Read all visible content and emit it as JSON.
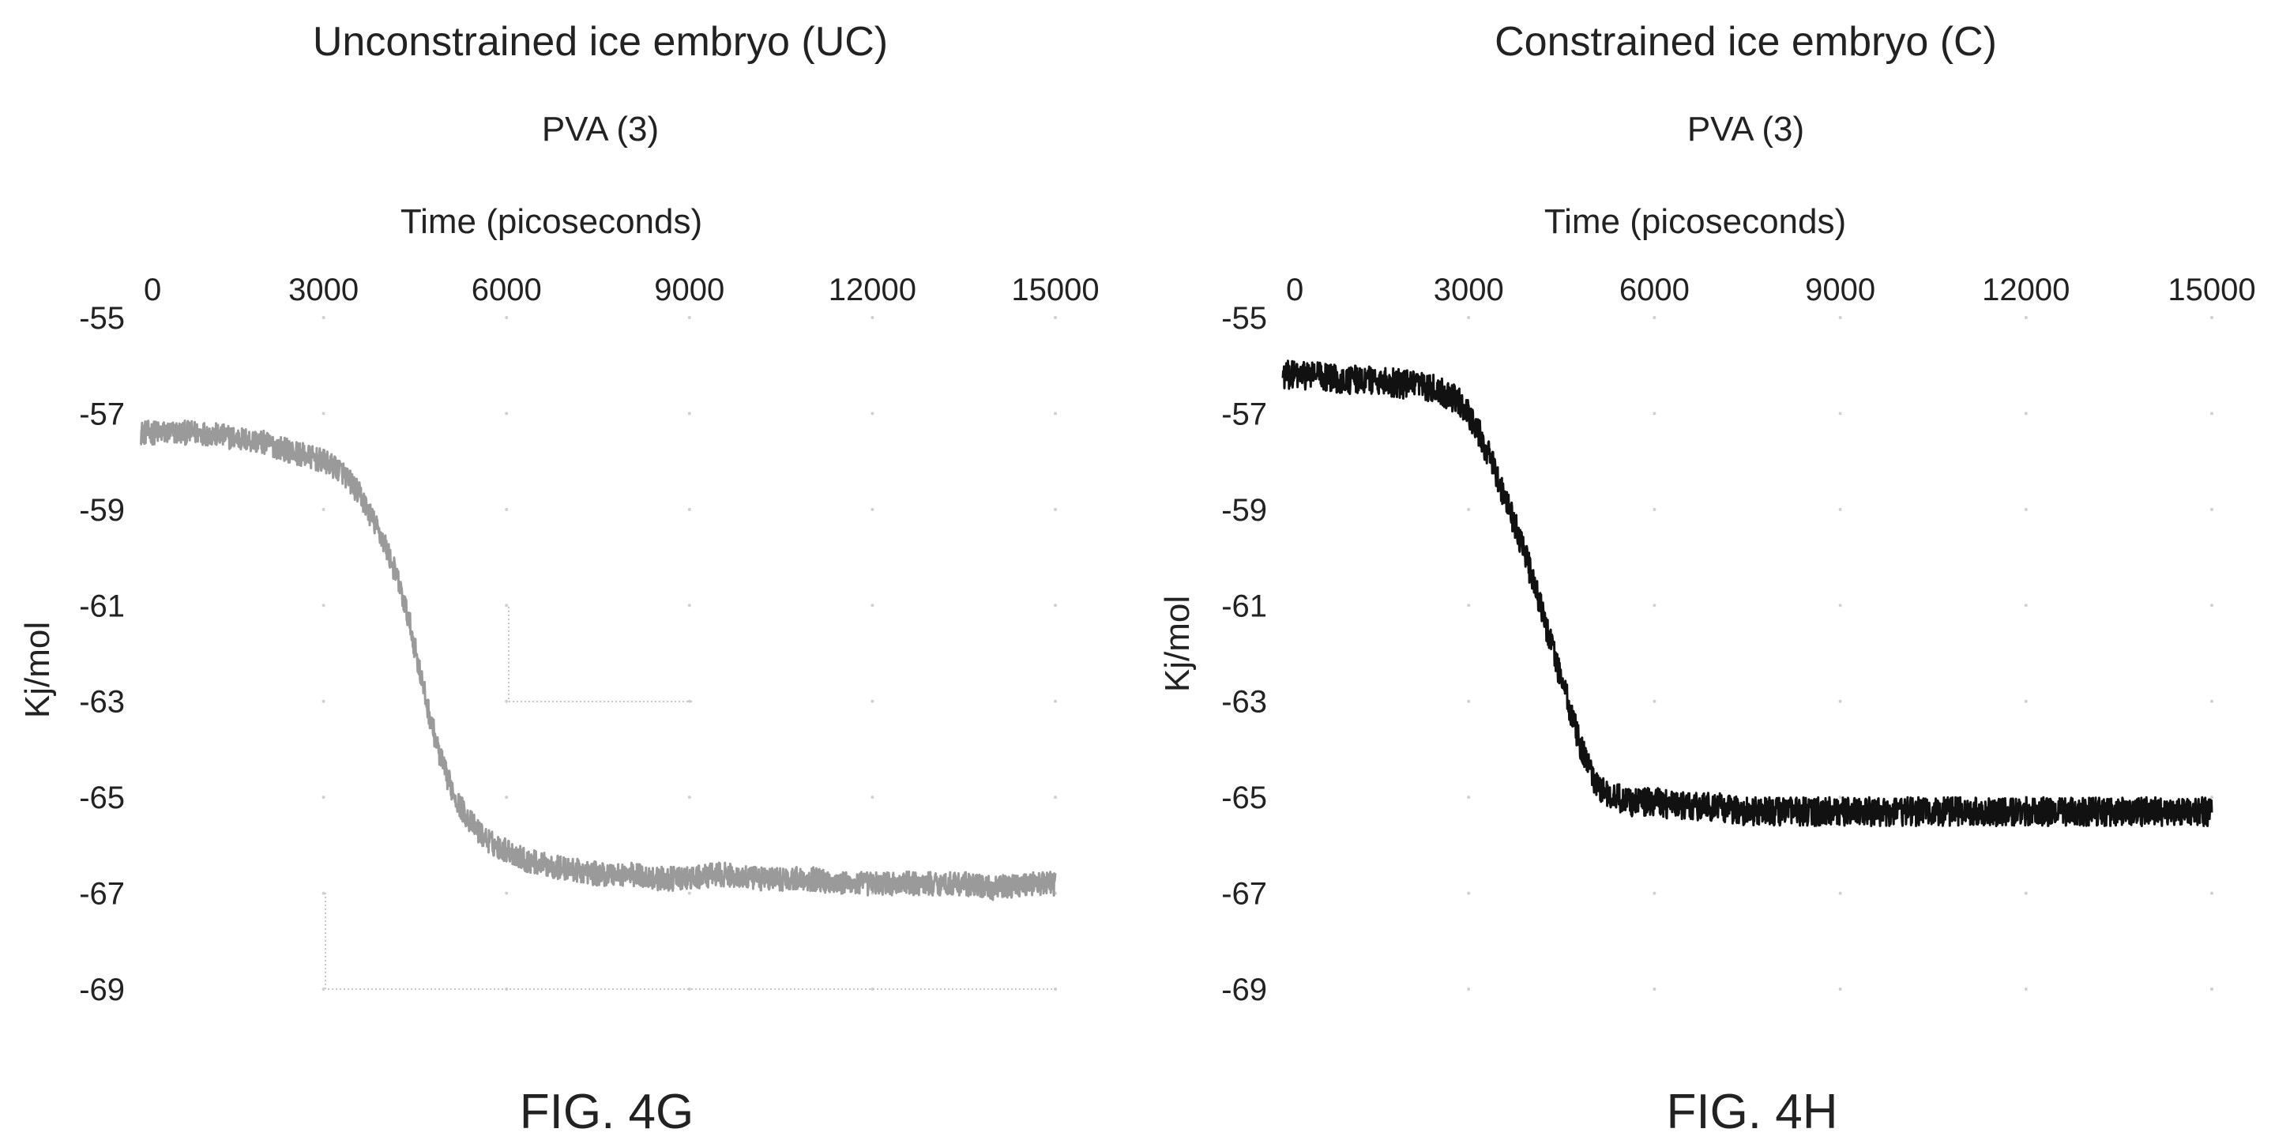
{
  "chart_data": [
    {
      "type": "line",
      "id": "4g",
      "title": "Unconstrained ice embryo (UC)",
      "subtitle": "PVA (3)",
      "xlabel": "Time (picoseconds)",
      "ylabel": "Kj/mol",
      "xlim": [
        0,
        15000
      ],
      "ylim": [
        -69,
        -55
      ],
      "x_ticks": [
        "0",
        "3000",
        "6000",
        "9000",
        "12000",
        "15000"
      ],
      "y_ticks": [
        "-55",
        "-57",
        "-59",
        "-61",
        "-63",
        "-65",
        "-67",
        "-69"
      ],
      "x_axis_position": "top",
      "y_axis_inverted": true,
      "grid": "dotted",
      "line_color": "#9a9a9a",
      "noise_amplitude": 0.25,
      "figure_label": "FIG. 4G",
      "series": [
        {
          "x": [
            0,
            300,
            600,
            1000,
            1500,
            2000,
            2500,
            3000,
            3300,
            3600,
            3800,
            4000,
            4200,
            4400,
            4500,
            4600,
            4700,
            4800,
            4900,
            5000,
            5200,
            5400,
            5600,
            5800,
            6000,
            6300,
            6600,
            7000,
            7500,
            8000,
            8500,
            9000,
            9500,
            10000,
            10500,
            11000,
            11500,
            12000,
            12500,
            13000,
            13500,
            14000,
            14500,
            15000
          ],
          "y": [
            -57.4,
            -57.4,
            -57.4,
            -57.4,
            -57.5,
            -57.6,
            -57.8,
            -58.0,
            -58.2,
            -58.7,
            -59.2,
            -59.7,
            -60.4,
            -61.3,
            -61.9,
            -62.5,
            -63.1,
            -63.6,
            -64.1,
            -64.5,
            -65.1,
            -65.5,
            -65.8,
            -66.0,
            -66.1,
            -66.3,
            -66.4,
            -66.5,
            -66.6,
            -66.6,
            -66.7,
            -66.7,
            -66.6,
            -66.7,
            -66.7,
            -66.7,
            -66.8,
            -66.8,
            -66.8,
            -66.8,
            -66.8,
            -66.9,
            -66.8,
            -66.8
          ]
        }
      ]
    },
    {
      "type": "line",
      "id": "4h",
      "title": "Constrained ice embryo (C)",
      "subtitle": "PVA (3)",
      "xlabel": "Time (picoseconds)",
      "ylabel": "Kj/mol",
      "xlim": [
        0,
        15000
      ],
      "ylim": [
        -69,
        -55
      ],
      "x_ticks": [
        "0",
        "3000",
        "6000",
        "9000",
        "12000",
        "15000"
      ],
      "y_ticks": [
        "-55",
        "-57",
        "-59",
        "-61",
        "-63",
        "-65",
        "-67",
        "-69"
      ],
      "x_axis_position": "top",
      "y_axis_inverted": true,
      "grid": "dotted",
      "line_color": "#111111",
      "noise_amplitude": 0.3,
      "figure_label": "FIG. 4H",
      "series": [
        {
          "x": [
            0,
            500,
            1000,
            1500,
            2000,
            2500,
            2800,
            3000,
            3200,
            3400,
            3600,
            3800,
            4000,
            4200,
            4400,
            4600,
            4800,
            5000,
            5200,
            5400,
            5600,
            6000,
            6500,
            7000,
            7500,
            8000,
            9000,
            10000,
            11000,
            12000,
            13000,
            14000,
            15000
          ],
          "y": [
            -56.2,
            -56.2,
            -56.3,
            -56.3,
            -56.4,
            -56.5,
            -56.7,
            -57.0,
            -57.5,
            -58.1,
            -58.8,
            -59.5,
            -60.3,
            -61.2,
            -62.1,
            -63.0,
            -63.9,
            -64.6,
            -64.9,
            -65.0,
            -65.1,
            -65.1,
            -65.2,
            -65.2,
            -65.3,
            -65.3,
            -65.3,
            -65.3,
            -65.3,
            -65.3,
            -65.3,
            -65.3,
            -65.3
          ]
        }
      ]
    }
  ]
}
